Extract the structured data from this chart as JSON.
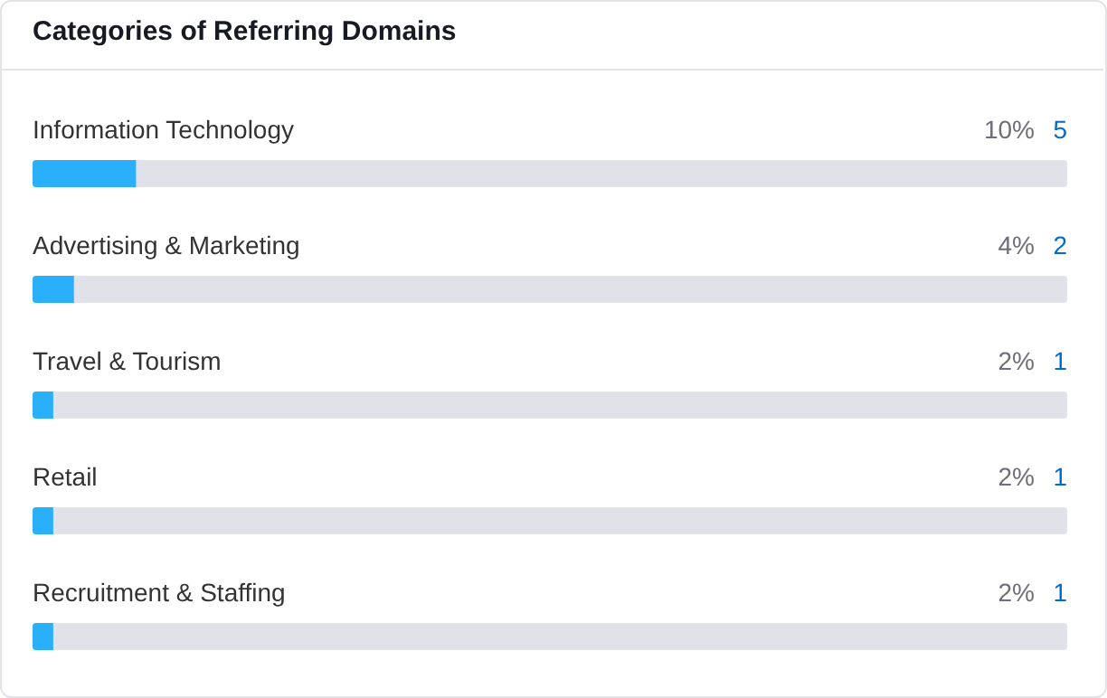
{
  "chart_data": {
    "type": "bar",
    "orientation": "horizontal",
    "title": "Categories of Referring Domains",
    "categories": [
      "Information Technology",
      "Advertising & Marketing",
      "Travel & Tourism",
      "Retail",
      "Recruitment & Staffing"
    ],
    "values": [
      10,
      4,
      2,
      2,
      2
    ],
    "value_labels": [
      "10%",
      "4%",
      "2%",
      "2%",
      "2%"
    ],
    "color": "#2ab0fb",
    "xlim": [
      0,
      100
    ],
    "tick_labels": false,
    "annotations": [
      "5",
      "2",
      "1",
      "1",
      "1"
    ]
  }
}
